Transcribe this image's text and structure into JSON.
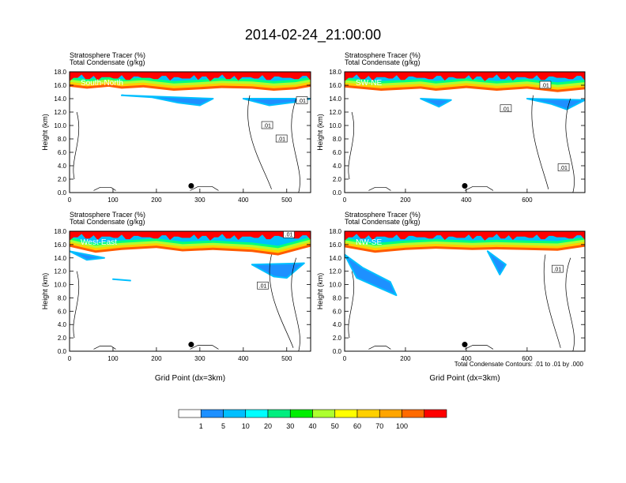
{
  "title": "2014-02-24_21:00:00",
  "panel_header": {
    "line1": "Stratosphere Tracer",
    "line1_unit": "(%)",
    "line2": "Total Condensate",
    "line2_unit": "(g/kg)"
  },
  "ylabel": "Height (km)",
  "xlabel": "Grid Point (dx=3km)",
  "contour_note": "Total Condensate Contours: .01 to .01 by .000",
  "colorbar": {
    "levels": [
      "1",
      "5",
      "10",
      "20",
      "30",
      "40",
      "50",
      "60",
      "70",
      "100"
    ],
    "colors": [
      "#ffffff",
      "#1e90ff",
      "#00bfff",
      "#00ffff",
      "#00ff7f",
      "#00ee00",
      "#adff2f",
      "#ffff00",
      "#ffd700",
      "#ffa500",
      "#ff6a00",
      "#ff0000"
    ]
  },
  "chart_data": [
    {
      "type": "heatmap",
      "name": "South-North",
      "y_ticks": [
        "0.0",
        "2.0",
        "4.0",
        "6.0",
        "8.0",
        "10.0",
        "12.0",
        "14.0",
        "16.0",
        "18.0"
      ],
      "x_ticks": [
        "0",
        "100",
        "200",
        "300",
        "400",
        "500"
      ],
      "xlim": [
        0,
        555
      ],
      "ylim": [
        0,
        18
      ],
      "contour_labels": [
        ".01",
        ".01",
        ".01"
      ],
      "contour_label_positions": [
        [
          455,
          10.0
        ],
        [
          488,
          8.0
        ],
        [
          535,
          13.7
        ]
      ],
      "marker": [
        280,
        1.0
      ],
      "tracer_top": [
        [
          0,
          15.6
        ],
        [
          40,
          15.3
        ],
        [
          90,
          15.6
        ],
        [
          120,
          15.3
        ],
        [
          170,
          15.5
        ],
        [
          240,
          15.0
        ],
        [
          300,
          15.2
        ],
        [
          350,
          15.4
        ],
        [
          420,
          15.3
        ],
        [
          470,
          15.0
        ],
        [
          520,
          15.2
        ],
        [
          555,
          15.6
        ]
      ],
      "blue_blobs": [
        [
          [
            120,
            14.5
          ],
          [
            190,
            14.2
          ],
          [
            250,
            13.4
          ],
          [
            300,
            13.0
          ],
          [
            330,
            14.0
          ]
        ],
        [
          [
            400,
            14.0
          ],
          [
            460,
            13.0
          ],
          [
            520,
            13.5
          ],
          [
            555,
            14.0
          ]
        ]
      ]
    },
    {
      "type": "heatmap",
      "name": "SW-NE",
      "y_ticks": [
        "0.0",
        "2.0",
        "4.0",
        "6.0",
        "8.0",
        "10.0",
        "12.0",
        "14.0",
        "16.0",
        "18.0"
      ],
      "x_ticks": [
        "0",
        "200",
        "400",
        "600"
      ],
      "xlim": [
        0,
        790
      ],
      "ylim": [
        0,
        18
      ],
      "contour_labels": [
        ".01",
        ".01",
        ".01"
      ],
      "contour_label_positions": [
        [
          660,
          16.0
        ],
        [
          530,
          12.5
        ],
        [
          720,
          3.7
        ]
      ],
      "marker": [
        395,
        1.0
      ],
      "tracer_top": [
        [
          0,
          15.5
        ],
        [
          120,
          15.0
        ],
        [
          250,
          15.3
        ],
        [
          300,
          15.0
        ],
        [
          400,
          15.4
        ],
        [
          500,
          15.0
        ],
        [
          600,
          15.3
        ],
        [
          700,
          14.8
        ],
        [
          790,
          15.2
        ]
      ],
      "blue_blobs": [
        [
          [
            250,
            14.0
          ],
          [
            310,
            12.8
          ],
          [
            350,
            13.8
          ]
        ],
        [
          [
            600,
            14.0
          ],
          [
            680,
            13.2
          ],
          [
            730,
            12.4
          ],
          [
            790,
            13.8
          ]
        ]
      ]
    },
    {
      "type": "heatmap",
      "name": "West-East",
      "y_ticks": [
        "0.0",
        "2.0",
        "4.0",
        "6.0",
        "8.0",
        "10.0",
        "12.0",
        "14.0",
        "16.0",
        "18.0"
      ],
      "x_ticks": [
        "0",
        "100",
        "200",
        "300",
        "400",
        "500"
      ],
      "xlim": [
        0,
        555
      ],
      "ylim": [
        0,
        18
      ],
      "contour_labels": [
        ".01",
        ".01"
      ],
      "contour_label_positions": [
        [
          505,
          17.5
        ],
        [
          445,
          9.8
        ]
      ],
      "marker": [
        280,
        1.0
      ],
      "tracer_top": [
        [
          0,
          15.5
        ],
        [
          60,
          14.6
        ],
        [
          120,
          15.0
        ],
        [
          200,
          15.3
        ],
        [
          260,
          14.8
        ],
        [
          330,
          15.0
        ],
        [
          420,
          14.7
        ],
        [
          480,
          14.2
        ],
        [
          555,
          15.5
        ]
      ],
      "blue_blobs": [
        [
          [
            0,
            15.0
          ],
          [
            40,
            13.7
          ],
          [
            80,
            14.0
          ]
        ],
        [
          [
            420,
            13.0
          ],
          [
            470,
            11.2
          ],
          [
            500,
            11.0
          ],
          [
            540,
            13.2
          ]
        ],
        [
          [
            100,
            10.8
          ],
          [
            140,
            10.6
          ]
        ]
      ]
    },
    {
      "type": "heatmap",
      "name": "NW-SE",
      "y_ticks": [
        "0.0",
        "2.0",
        "4.0",
        "6.0",
        "8.0",
        "10.0",
        "12.0",
        "14.0",
        "16.0",
        "18.0"
      ],
      "x_ticks": [
        "0",
        "200",
        "400",
        "600"
      ],
      "xlim": [
        0,
        790
      ],
      "ylim": [
        0,
        18
      ],
      "contour_labels": [
        ".01"
      ],
      "contour_label_positions": [
        [
          700,
          12.3
        ]
      ],
      "marker": [
        395,
        1.0
      ],
      "tracer_top": [
        [
          0,
          15.4
        ],
        [
          100,
          14.6
        ],
        [
          200,
          15.0
        ],
        [
          300,
          15.2
        ],
        [
          420,
          15.0
        ],
        [
          500,
          15.1
        ],
        [
          600,
          15.0
        ],
        [
          700,
          14.9
        ],
        [
          790,
          15.5
        ]
      ],
      "blue_blobs": [
        [
          [
            0,
            14.5
          ],
          [
            40,
            11.0
          ],
          [
            110,
            9.6
          ],
          [
            170,
            8.4
          ],
          [
            150,
            10.4
          ],
          [
            60,
            12.5
          ]
        ],
        [
          [
            470,
            15.0
          ],
          [
            510,
            11.5
          ],
          [
            530,
            13.0
          ]
        ]
      ]
    }
  ]
}
